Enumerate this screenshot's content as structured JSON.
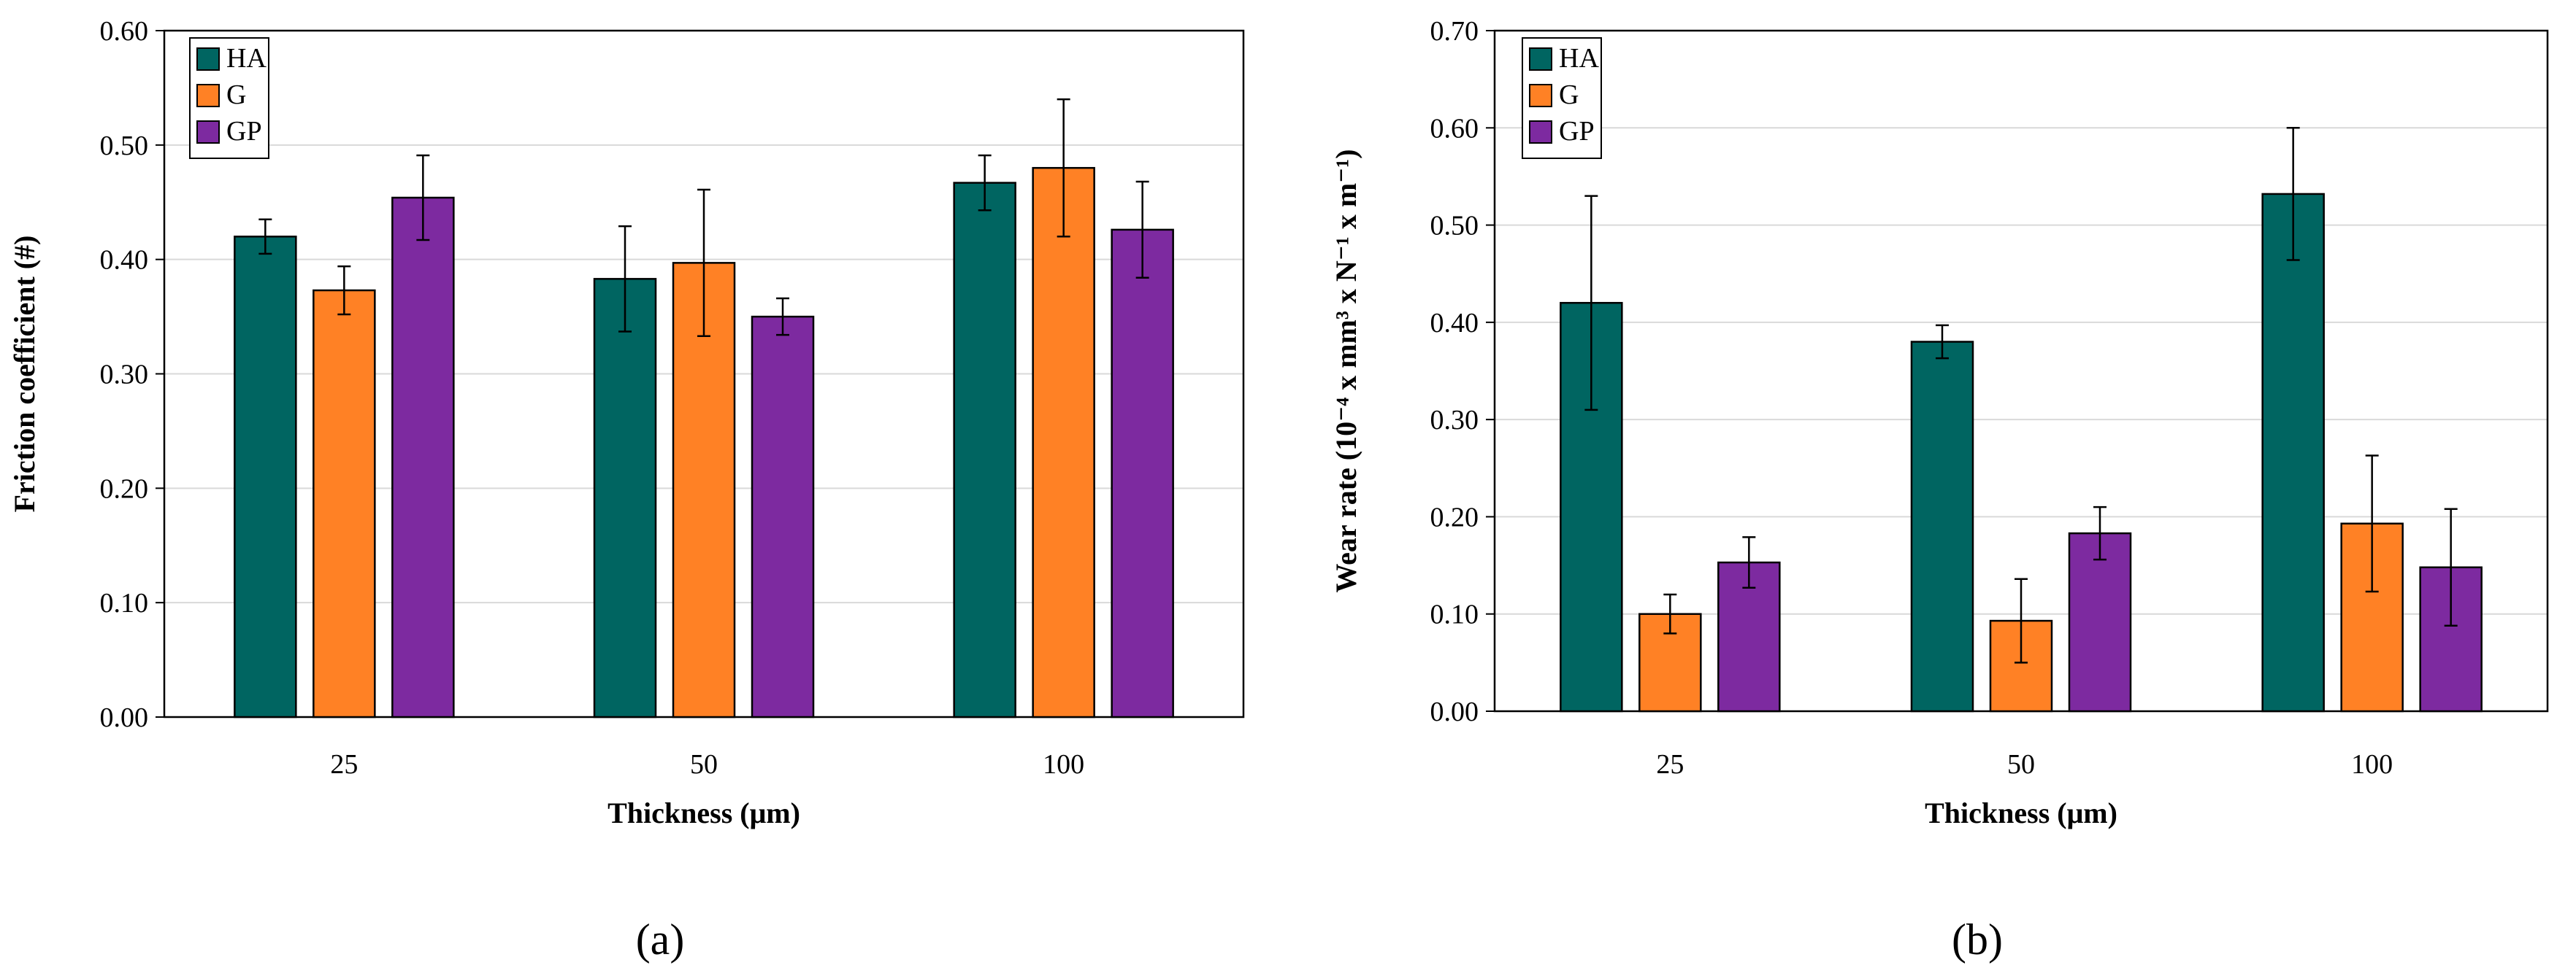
{
  "colors": {
    "HA": "#006561",
    "G": "#FF8125",
    "GP": "#7D2AA0",
    "grid": "#d9d9d9",
    "axis": "#000000"
  },
  "chart_data": [
    {
      "type": "bar",
      "panel_label": "(a)",
      "title": "",
      "xlabel": "Thickness (μm)",
      "ylabel": "Friction coefficient (#)",
      "categories": [
        "25",
        "50",
        "100"
      ],
      "ylim": [
        0,
        0.6
      ],
      "yticks": [
        0,
        0.1,
        0.2,
        0.3,
        0.4,
        0.5,
        0.6
      ],
      "ytick_labels": [
        "0.00",
        "0.10",
        "0.20",
        "0.30",
        "0.40",
        "0.50",
        "0.60"
      ],
      "grid": true,
      "legend_position": "top-left",
      "series": [
        {
          "name": "HA",
          "values": [
            0.42,
            0.383,
            0.467
          ],
          "errors": [
            0.015,
            0.046,
            0.024
          ]
        },
        {
          "name": "G",
          "values": [
            0.373,
            0.397,
            0.48
          ],
          "errors": [
            0.021,
            0.064,
            0.06
          ]
        },
        {
          "name": "GP",
          "values": [
            0.454,
            0.35,
            0.426
          ],
          "errors": [
            0.037,
            0.016,
            0.042
          ]
        }
      ]
    },
    {
      "type": "bar",
      "panel_label": "(b)",
      "title": "",
      "xlabel": "Thickness (μm)",
      "ylabel": "Wear rate (10⁻⁴ x mm³ x N⁻¹ x m⁻¹)",
      "categories": [
        "25",
        "50",
        "100"
      ],
      "ylim": [
        0,
        0.7
      ],
      "yticks": [
        0,
        0.1,
        0.2,
        0.3,
        0.4,
        0.5,
        0.6,
        0.7
      ],
      "ytick_labels": [
        "0.00",
        "0.10",
        "0.20",
        "0.30",
        "0.40",
        "0.50",
        "0.60",
        "0.70"
      ],
      "grid": true,
      "legend_position": "top-left",
      "series": [
        {
          "name": "HA",
          "values": [
            0.42,
            0.38,
            0.532
          ],
          "errors": [
            0.11,
            0.017,
            0.068
          ]
        },
        {
          "name": "G",
          "values": [
            0.1,
            0.093,
            0.193
          ],
          "errors": [
            0.02,
            0.043,
            0.07
          ]
        },
        {
          "name": "GP",
          "values": [
            0.153,
            0.183,
            0.148
          ],
          "errors": [
            0.026,
            0.027,
            0.06
          ]
        }
      ]
    }
  ]
}
